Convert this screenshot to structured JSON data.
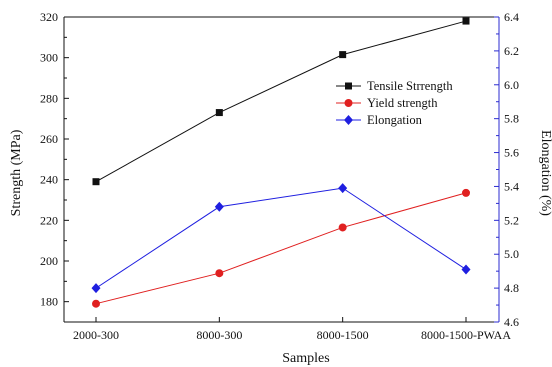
{
  "chart_data": {
    "type": "line",
    "title": "",
    "xlabel": "Samples",
    "ylabel_left": "Strength (MPa)",
    "ylabel_right": "Elongation (%)",
    "categories": [
      "2000-300",
      "8000-300",
      "8000-1500",
      "8000-1500-PWAA"
    ],
    "ylim_left": [
      170,
      320
    ],
    "yticks_left": [
      "180",
      "200",
      "220",
      "240",
      "260",
      "280",
      "300",
      "320"
    ],
    "ylim_right": [
      4.6,
      6.4
    ],
    "yticks_right": [
      "4.6",
      "4.8",
      "5.0",
      "5.2",
      "5.4",
      "5.6",
      "5.8",
      "6.0",
      "6.2",
      "6.4"
    ],
    "grid": false,
    "legend_position": "upper-right",
    "axis_color_right": "#2b2bd0",
    "series": [
      {
        "name": "Tensile Strrength",
        "axis": "left",
        "color": "#111111",
        "marker": "square",
        "values": [
          239,
          273,
          301.5,
          318
        ]
      },
      {
        "name": "Yield strength",
        "axis": "left",
        "color": "#e02020",
        "marker": "circle",
        "values": [
          179,
          194,
          216.5,
          233.5
        ]
      },
      {
        "name": "Elongation",
        "axis": "right",
        "color": "#1f1fe0",
        "marker": "diamond",
        "values": [
          4.8,
          5.28,
          5.39,
          4.91
        ]
      }
    ]
  }
}
